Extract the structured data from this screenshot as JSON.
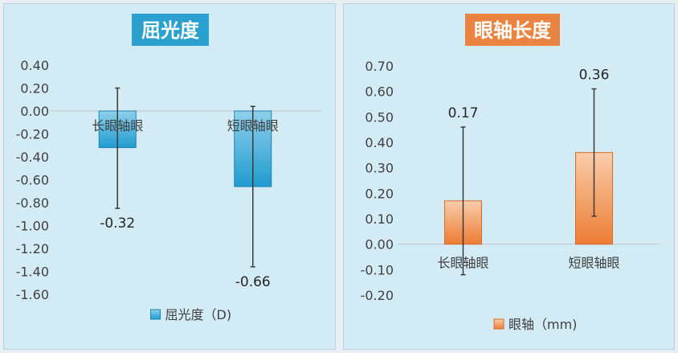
{
  "colors": {
    "left_title_bg": "#2aa0cf",
    "right_title_bg": "#ec8441",
    "left_bar_top": "#8fd0eb",
    "left_bar_bottom": "#1f9bd0",
    "left_bar_border": "#1d84b1",
    "right_bar_top": "#f9cdaa",
    "right_bar_bottom": "#ed7c34",
    "right_bar_border": "#d86b25",
    "gridline": "#c0c4c8",
    "error_bar": "#3a3a3a"
  },
  "chart_data": [
    {
      "type": "bar",
      "title": "屈光度",
      "categories": [
        "长眼轴眼",
        "短眼轴眼"
      ],
      "series": [
        {
          "name": "屈光度（D)",
          "values": [
            -0.32,
            -0.66
          ],
          "error_low": [
            -0.85,
            -1.36
          ],
          "error_high": [
            0.2,
            0.04
          ],
          "value_labels": [
            "-0.32",
            "-0.66"
          ]
        }
      ],
      "ylim": [
        -1.6,
        0.4
      ],
      "yticks": [
        "0.40",
        "0.20",
        "0.00",
        "-0.20",
        "-0.40",
        "-0.60",
        "-0.80",
        "-1.00",
        "-1.20",
        "-1.40",
        "-1.60"
      ],
      "ytick_values": [
        0.4,
        0.2,
        0,
        -0.2,
        -0.4,
        -0.6,
        -0.8,
        -1.0,
        -1.2,
        -1.4,
        -1.6
      ],
      "legend_position": "bottom",
      "grid": false
    },
    {
      "type": "bar",
      "title": "眼轴长度",
      "categories": [
        "长眼轴眼",
        "短眼轴眼"
      ],
      "series": [
        {
          "name": "眼轴（mm)",
          "values": [
            0.17,
            0.36
          ],
          "error_low": [
            -0.12,
            0.11
          ],
          "error_high": [
            0.46,
            0.61
          ],
          "value_labels": [
            "0.17",
            "0.36"
          ]
        }
      ],
      "ylim": [
        -0.2,
        0.7
      ],
      "yticks": [
        "0.70",
        "0.60",
        "0.50",
        "0.40",
        "0.30",
        "0.20",
        "0.10",
        "0.00",
        "-0.10",
        "-0.20"
      ],
      "ytick_values": [
        0.7,
        0.6,
        0.5,
        0.4,
        0.3,
        0.2,
        0.1,
        0,
        -0.1,
        -0.2
      ],
      "legend_position": "bottom",
      "grid": false
    }
  ]
}
